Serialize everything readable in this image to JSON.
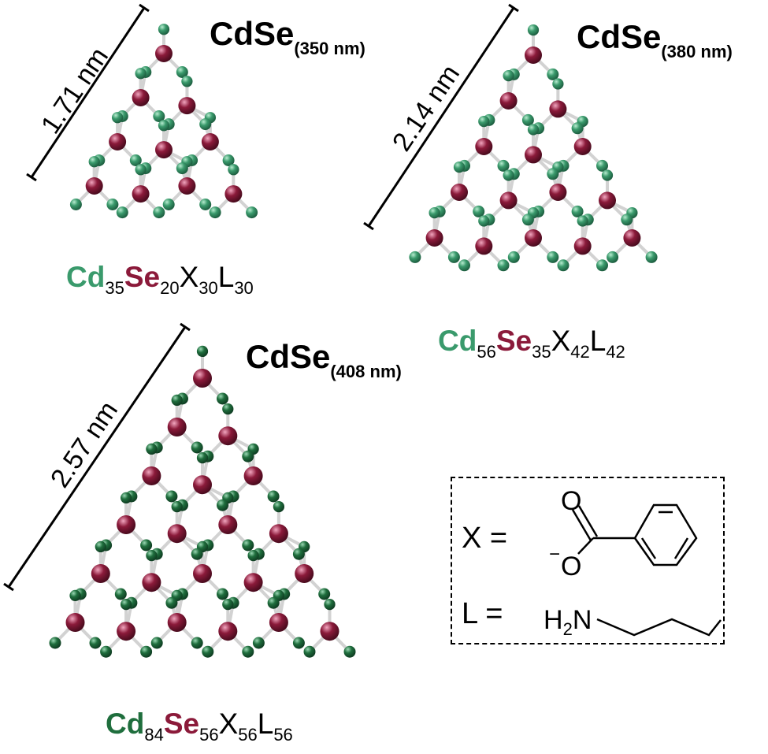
{
  "colors": {
    "cd": "#3a9a6c",
    "cd_dark": "#1f6e3d",
    "se": "#8b1a3a",
    "bond": "#d2d2d2",
    "ink": "#000000"
  },
  "clusters": [
    {
      "title": "CdSe",
      "title_sub": "(350 nm)",
      "scale": "1.71 nm",
      "formula": {
        "cd": "Cd",
        "cd_n": "35",
        "se": "Se",
        "se_n": "20",
        "x": "X",
        "x_n": "30",
        "l": "L",
        "l_n": "30"
      },
      "cd_color": "cd"
    },
    {
      "title": "CdSe",
      "title_sub": "(380 nm)",
      "scale": "2.14 nm",
      "formula": {
        "cd": "Cd",
        "cd_n": "56",
        "se": "Se",
        "se_n": "35",
        "x": "X",
        "x_n": "42",
        "l": "L",
        "l_n": "42"
      },
      "cd_color": "cd"
    },
    {
      "title": "CdSe",
      "title_sub": "(408 nm)",
      "scale": "2.57 nm",
      "formula": {
        "cd": "Cd",
        "cd_n": "84",
        "se": "Se",
        "se_n": "56",
        "x": "X",
        "x_n": "56",
        "l": "L",
        "l_n": "56"
      },
      "cd_color": "cd_dark"
    }
  ],
  "legend": {
    "x_label": "X =",
    "l_label": "L =",
    "carbonyl_o": "O",
    "carboxylate_o": "O",
    "carboxylate_charge": "−",
    "amine_h": "H",
    "amine_h_n": "2",
    "amine_n": "N"
  }
}
